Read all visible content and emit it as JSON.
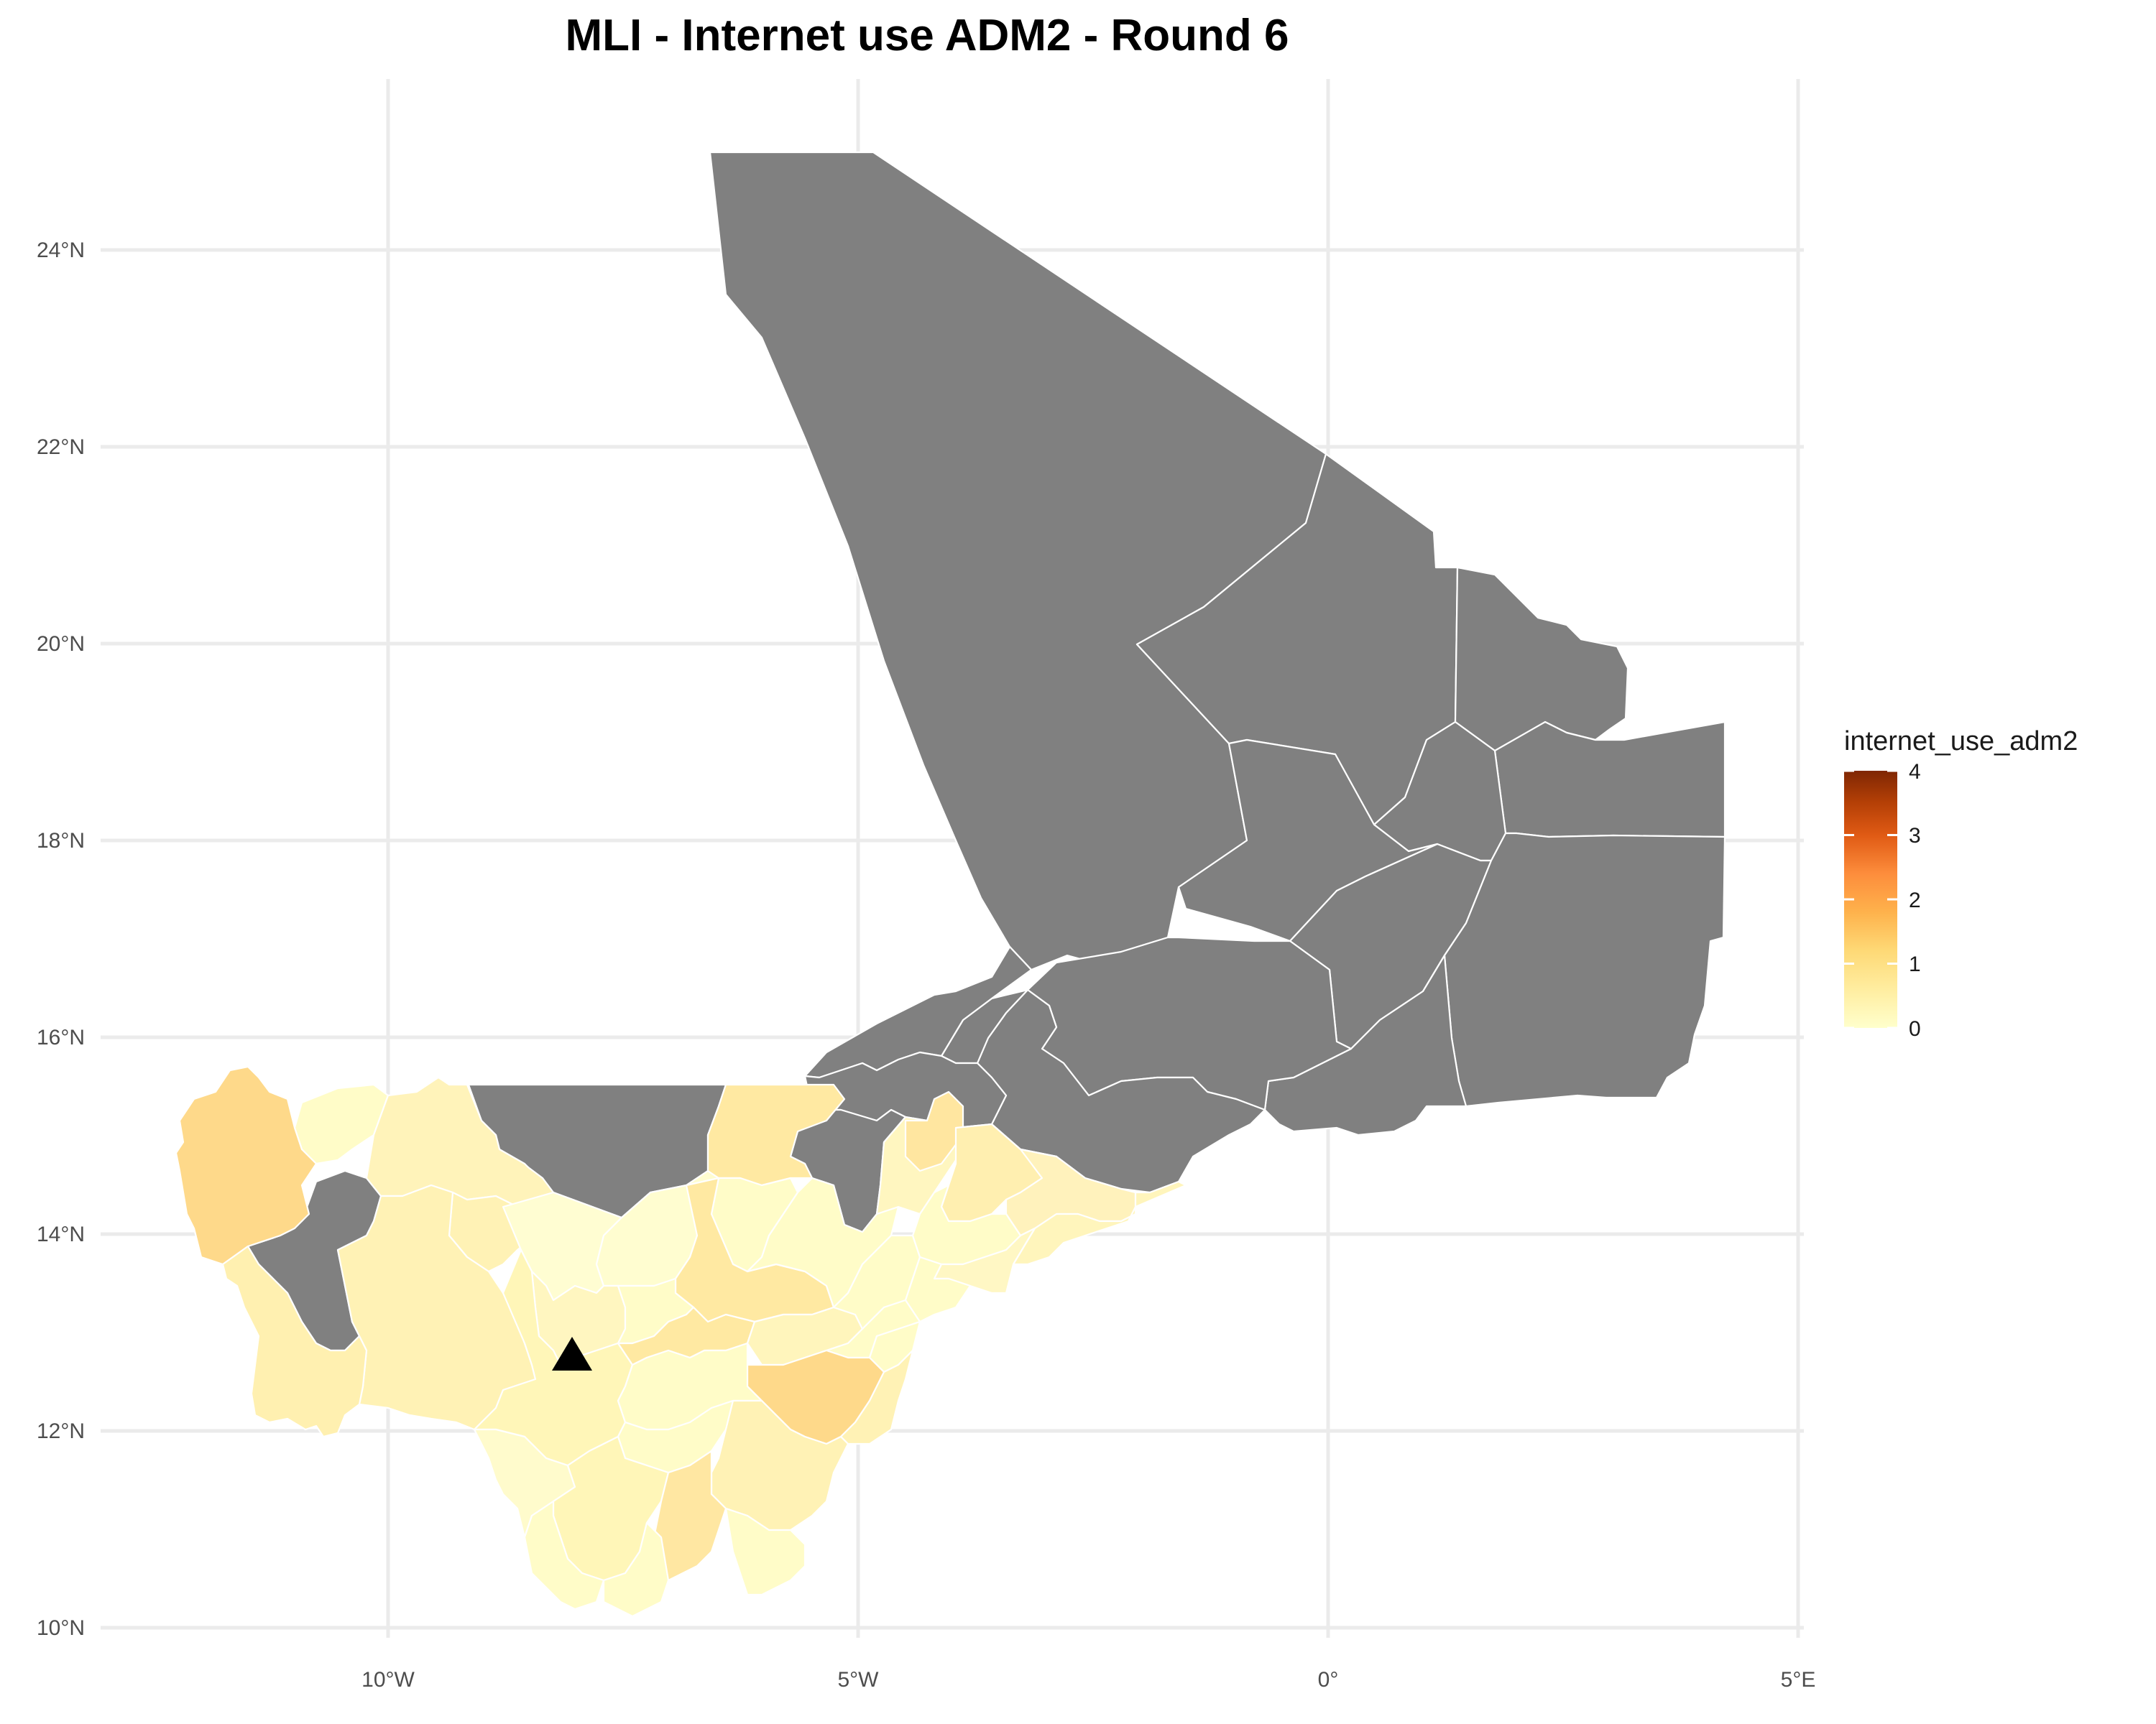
{
  "title": "MLI - Internet use ADM2 - Round 6",
  "colors": {
    "no_data": "#808080",
    "border": "#ffffff",
    "grid": "#ebebeb",
    "scale": [
      "#FFFFCC",
      "#FFEDA0",
      "#FED976",
      "#FEB24C",
      "#FD8D3C",
      "#E05A14",
      "#B33F06",
      "#7F2704"
    ]
  },
  "axes": {
    "x_ticks": [
      "10°W",
      "5°W",
      "0°",
      "5°E"
    ],
    "y_ticks": [
      "24°N",
      "22°N",
      "20°N",
      "18°N",
      "16°N",
      "14°N",
      "12°N",
      "10°N"
    ]
  },
  "legend": {
    "title": "internet_use_adm2",
    "min": 0,
    "max": 4,
    "ticks": [
      "4",
      "3",
      "2",
      "1",
      "0"
    ],
    "placement": "right"
  },
  "marker": {
    "shape": "triangle",
    "color": "#000000",
    "lon": -8.0,
    "lat": 12.65
  },
  "map": {
    "grid": true,
    "xlim": [
      -12.3,
      5.2
    ],
    "ylim": [
      9.7,
      25.0
    ]
  }
}
